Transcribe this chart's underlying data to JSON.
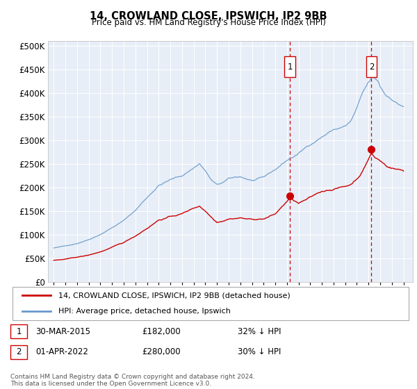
{
  "title": "14, CROWLAND CLOSE, IPSWICH, IP2 9BB",
  "subtitle": "Price paid vs. HM Land Registry's House Price Index (HPI)",
  "plot_bg_color": "#e8eef7",
  "ylim": [
    0,
    510000
  ],
  "yticks": [
    0,
    50000,
    100000,
    150000,
    200000,
    250000,
    300000,
    350000,
    400000,
    450000,
    500000
  ],
  "xlim_left": 1994.5,
  "xlim_right": 2025.8,
  "legend_label_red": "14, CROWLAND CLOSE, IPSWICH, IP2 9BB (detached house)",
  "legend_label_blue": "HPI: Average price, detached house, Ipswich",
  "footer": "Contains HM Land Registry data © Crown copyright and database right 2024.\nThis data is licensed under the Open Government Licence v3.0.",
  "annotation1": {
    "label": "1",
    "date": "30-MAR-2015",
    "price": "£182,000",
    "hpi": "32% ↓ HPI"
  },
  "annotation2": {
    "label": "2",
    "date": "01-APR-2022",
    "price": "£280,000",
    "hpi": "30% ↓ HPI"
  },
  "vline1_x": 2015.25,
  "vline2_x": 2022.25,
  "dot1_x": 2015.25,
  "dot1_y": 182000,
  "dot2_x": 2022.25,
  "dot2_y": 280000,
  "red_color": "#cc0000",
  "blue_color": "#6699cc"
}
